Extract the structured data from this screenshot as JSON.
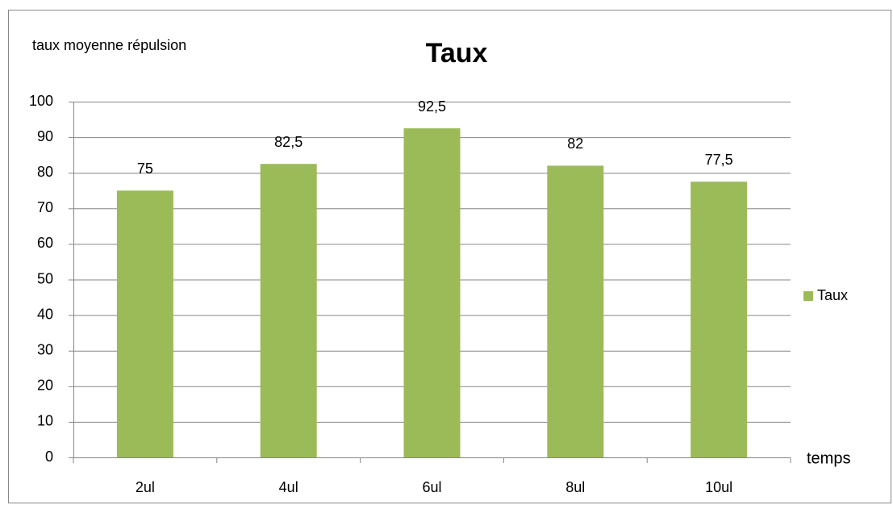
{
  "chart_data": {
    "type": "bar",
    "title": "Taux",
    "y_label": "taux moyenne répulsion",
    "x_label": "temps",
    "categories": [
      "2ul",
      "4ul",
      "6ul",
      "8ul",
      "10ul"
    ],
    "series": [
      {
        "name": "Taux",
        "color": "#9bbb59",
        "values": [
          75,
          82.5,
          92.5,
          82,
          77.5
        ],
        "value_labels": [
          "75",
          "82,5",
          "92,5",
          "82",
          "77,5"
        ]
      }
    ],
    "ylim": [
      0,
      100
    ],
    "yticks": [
      0,
      10,
      20,
      30,
      40,
      50,
      60,
      70,
      80,
      90,
      100
    ],
    "grid": true,
    "legend": "right"
  }
}
